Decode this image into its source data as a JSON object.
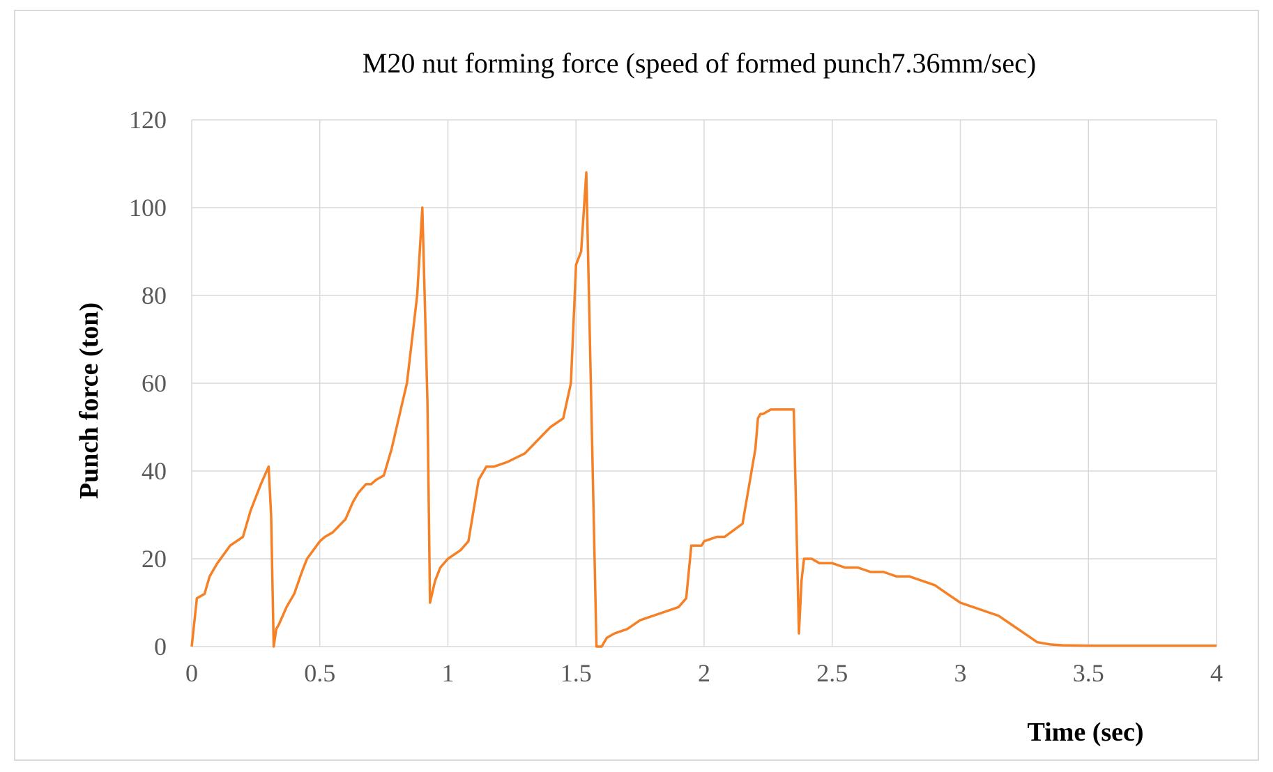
{
  "chart_data": {
    "type": "line",
    "title": "M20 nut forming  force (speed of  formed punch7.36mm/sec)",
    "xlabel": "Time  (sec)",
    "ylabel": "Punch force  (ton)",
    "xlim": [
      0,
      4
    ],
    "ylim": [
      0,
      120
    ],
    "xticks": [
      "0",
      "0.5",
      "1",
      "1.5",
      "2",
      "2.5",
      "3",
      "3.5",
      "4"
    ],
    "yticks": [
      "0",
      "20",
      "40",
      "60",
      "80",
      "100",
      "120"
    ],
    "grid": true,
    "color": "#f58025",
    "series": [
      {
        "x": [
          0,
          0.02,
          0.05,
          0.07,
          0.1,
          0.15,
          0.2,
          0.23,
          0.27,
          0.3,
          0.31,
          0.32,
          0.33,
          0.34,
          0.37,
          0.4,
          0.43,
          0.45,
          0.5,
          0.52,
          0.55,
          0.6,
          0.63,
          0.65,
          0.68,
          0.7,
          0.72,
          0.75,
          0.78,
          0.8,
          0.82,
          0.84,
          0.88,
          0.9,
          0.92,
          0.93,
          0.95,
          0.97,
          1.0,
          1.05,
          1.08,
          1.12,
          1.14,
          1.15,
          1.18,
          1.23,
          1.3,
          1.35,
          1.4,
          1.45,
          1.48,
          1.5,
          1.52,
          1.54,
          1.58,
          1.6,
          1.62,
          1.65,
          1.7,
          1.75,
          1.8,
          1.85,
          1.9,
          1.93,
          1.95,
          1.97,
          1.99,
          2.0,
          2.05,
          2.08,
          2.15,
          2.2,
          2.21,
          2.22,
          2.23,
          2.26,
          2.3,
          2.35,
          2.37,
          2.38,
          2.39,
          2.4,
          2.42,
          2.45,
          2.5,
          2.55,
          2.6,
          2.65,
          2.7,
          2.75,
          2.8,
          2.85,
          2.9,
          2.95,
          3.0,
          3.05,
          3.1,
          3.15,
          3.2,
          3.25,
          3.3,
          3.35,
          3.4,
          3.5,
          3.6,
          3.8,
          4.0
        ],
        "y": [
          0,
          11,
          12,
          16,
          19,
          23,
          25,
          31,
          37,
          41,
          30,
          0,
          4,
          5,
          9,
          12,
          17,
          20,
          24,
          25,
          26,
          29,
          33,
          35,
          37,
          37,
          38,
          39,
          45,
          50,
          55,
          60,
          80,
          100,
          56,
          10,
          15,
          18,
          20,
          22,
          24,
          38,
          40,
          41,
          41,
          42,
          44,
          47,
          50,
          52,
          60,
          87,
          90,
          108,
          0,
          0,
          2,
          3,
          4,
          6,
          7,
          8,
          9,
          11,
          23,
          23,
          23,
          24,
          25,
          25,
          28,
          45,
          52,
          53,
          53,
          54,
          54,
          54,
          3,
          15,
          20,
          20,
          20,
          19,
          19,
          18,
          18,
          17,
          17,
          16,
          16,
          15,
          14,
          12,
          10,
          9,
          8,
          7,
          5,
          3,
          1,
          0.5,
          0.3,
          0.2,
          0.2,
          0.2,
          0.2
        ]
      }
    ]
  }
}
